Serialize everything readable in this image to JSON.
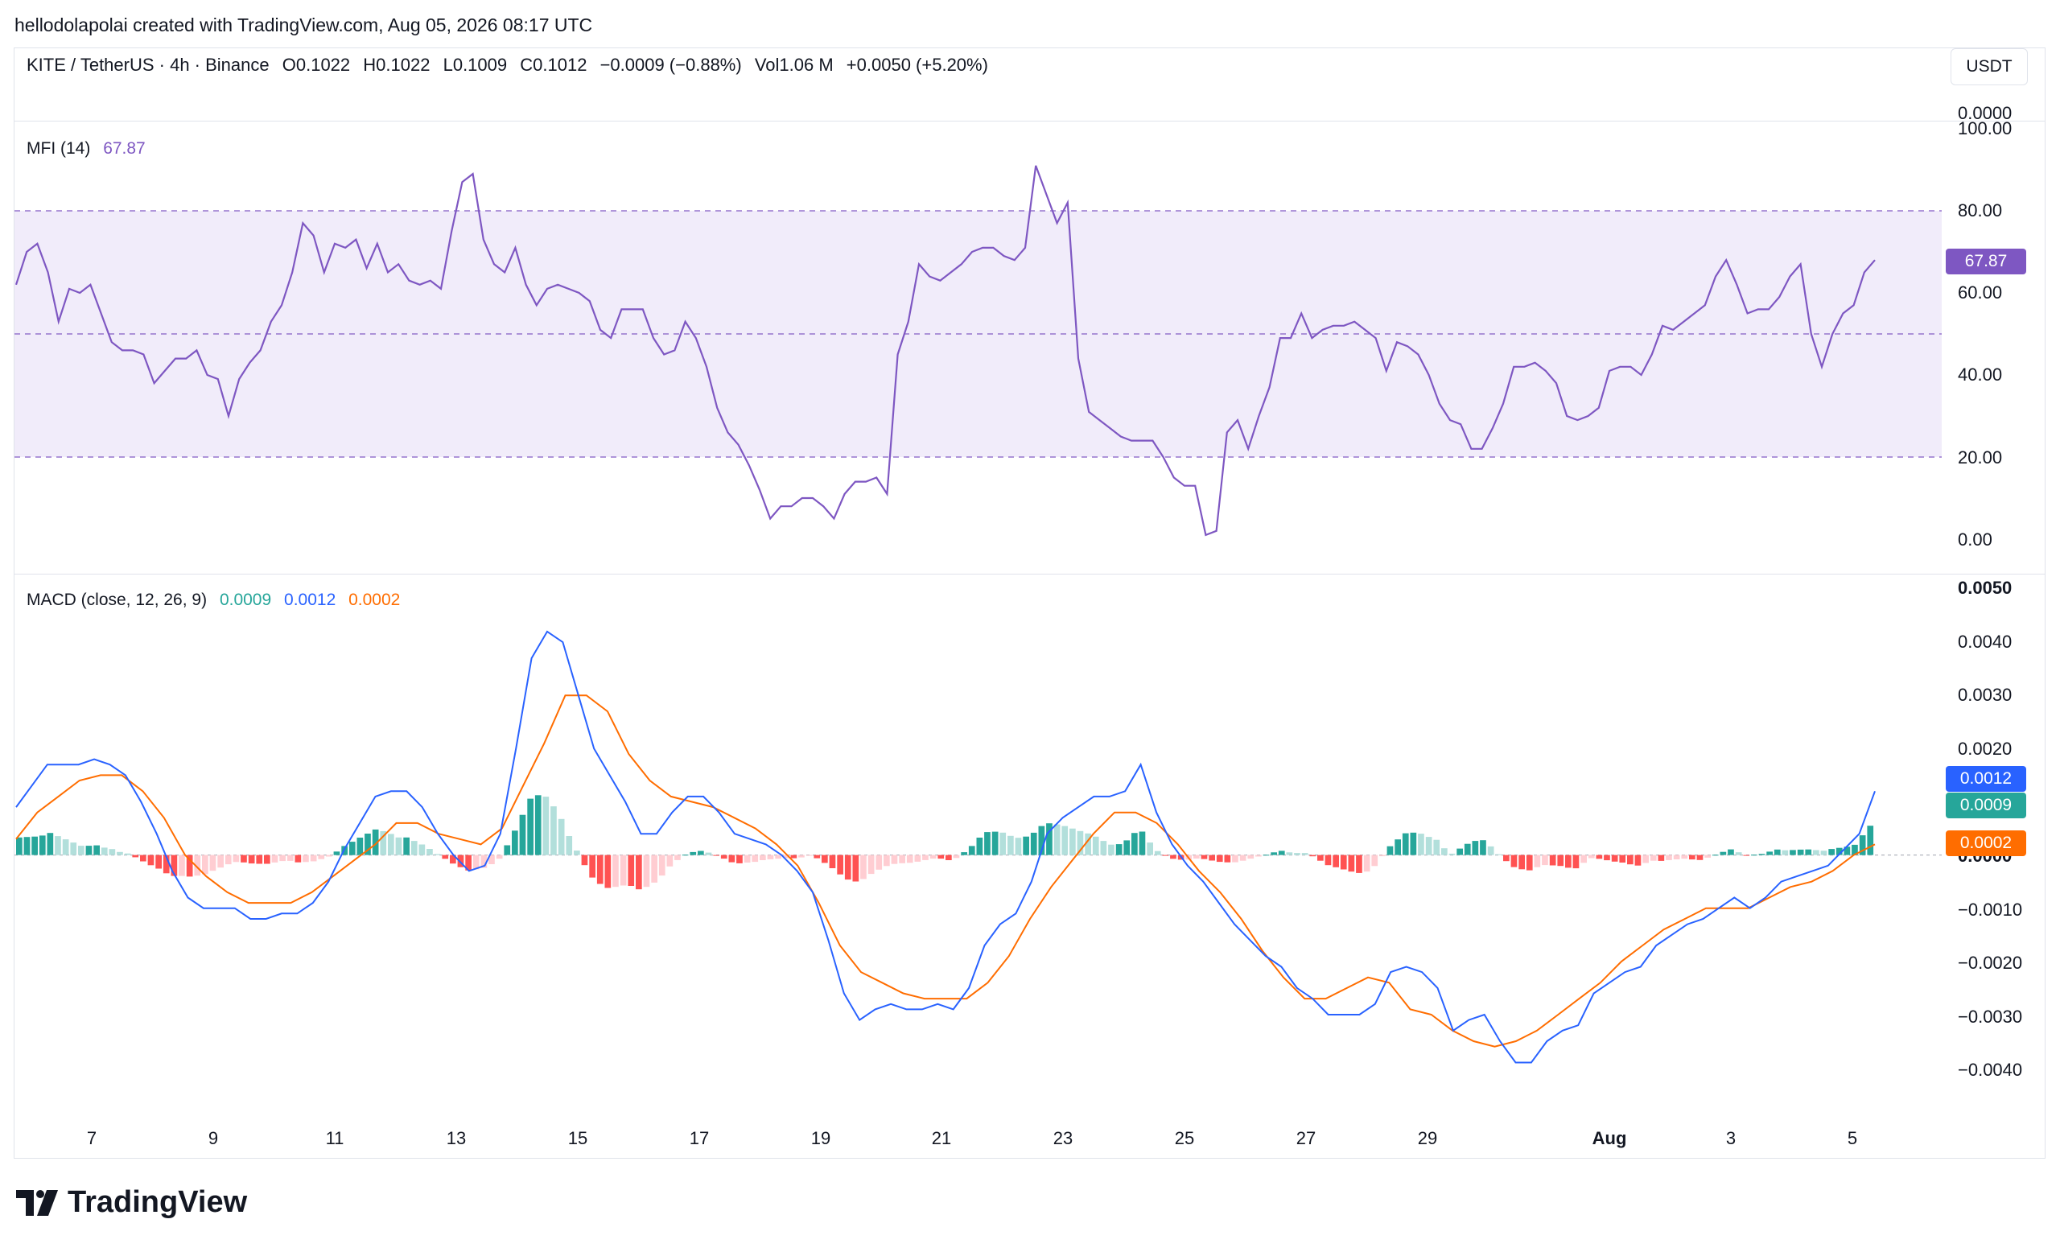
{
  "header": {
    "creator_line": "hellodolapolai created with TradingView.com, Aug 05, 2026 08:17 UTC"
  },
  "symbol": {
    "title": "KITE / TetherUS · 4h · Binance",
    "open": "O0.1022",
    "high": "H0.1022",
    "low": "L0.1009",
    "close": "C0.1012",
    "change": "−0.0009 (−0.88%)",
    "volume": "Vol1.06 M",
    "volume_change": "+0.0050 (+5.20%)"
  },
  "currency_button": "USDT",
  "price_axis_top": "0.0000",
  "mfi": {
    "label": "MFI (14)",
    "value": "67.87",
    "axis": [
      "100.00",
      "80.00",
      "60.00",
      "40.00",
      "20.00",
      "0.00"
    ],
    "color": "#7e57c2",
    "band_color": "#f1ecfa"
  },
  "macd": {
    "label": "MACD (close, 12, 26, 9)",
    "hist_value": "0.0009",
    "macd_value": "0.0012",
    "signal_value": "0.0002",
    "axis": [
      "0.0050",
      "0.0040",
      "0.0030",
      "0.0020",
      "0.0000",
      "−0.0010",
      "−0.0020",
      "−0.0030",
      "−0.0040"
    ],
    "tag_macd": "0.0012",
    "tag_hist": "0.0009",
    "tag_signal": "0.0002",
    "colors": {
      "macd": "#2962ff",
      "signal": "#ff6d00",
      "hist": "#26a69a",
      "hist_light": "#b2dfdb",
      "neg": "#ff5252",
      "neg_light": "#ffcdd2"
    }
  },
  "x_axis": [
    "7",
    "9",
    "11",
    "13",
    "15",
    "17",
    "19",
    "21",
    "23",
    "25",
    "27",
    "29",
    "Aug",
    "3",
    "5"
  ],
  "brand": "TradingView",
  "chart_data": [
    {
      "type": "line",
      "title": "MFI (14)",
      "ylim": [
        0,
        100
      ],
      "levels": [
        80,
        50,
        20
      ],
      "series": [
        {
          "name": "MFI (14)",
          "values": [
            62,
            70,
            72,
            65,
            53,
            61,
            60,
            62,
            55,
            48,
            46,
            46,
            45,
            38,
            41,
            44,
            44,
            46,
            40,
            39,
            30,
            39,
            43,
            46,
            53,
            57,
            65,
            77,
            74,
            65,
            72,
            71,
            73,
            66,
            72,
            65,
            67,
            63,
            62,
            63,
            61,
            75,
            87,
            89,
            73,
            67,
            65,
            71,
            62,
            57,
            61,
            62,
            61,
            60,
            58,
            51,
            49,
            56,
            56,
            56,
            49,
            45,
            46,
            53,
            49,
            42,
            32,
            26,
            23,
            18,
            12,
            5,
            8,
            8,
            10,
            10,
            8,
            5,
            11,
            14,
            14,
            15,
            11,
            45,
            53,
            67,
            64,
            63,
            65,
            67,
            70,
            71,
            71,
            69,
            68,
            71,
            91,
            84,
            77,
            82,
            44,
            31,
            29,
            27,
            25,
            24,
            24,
            24,
            20,
            15,
            13,
            13,
            1,
            2,
            26,
            29,
            22,
            30,
            37,
            49,
            49,
            55,
            49,
            51,
            52,
            52,
            53,
            51,
            49,
            41,
            48,
            47,
            45,
            40,
            33,
            29,
            28,
            22,
            22,
            27,
            33,
            42,
            42,
            43,
            41,
            38,
            30,
            29,
            30,
            32,
            41,
            42,
            42,
            40,
            45,
            52,
            51,
            53,
            55,
            57,
            64,
            68,
            62,
            55,
            56,
            56,
            59,
            64,
            67,
            50,
            42,
            50,
            55,
            57,
            65,
            68
          ]
        }
      ]
    },
    {
      "type": "line",
      "title": "MACD (close, 12, 26, 9)",
      "ylim": [
        -0.0048,
        0.005
      ],
      "series": [
        {
          "name": "MACD",
          "values": [
            0.0009,
            0.0013,
            0.0017,
            0.0017,
            0.0017,
            0.0018,
            0.0017,
            0.0015,
            0.001,
            0.0004,
            -0.0003,
            -0.0008,
            -0.001,
            -0.001,
            -0.001,
            -0.0012,
            -0.0012,
            -0.0011,
            -0.0011,
            -0.0009,
            -0.0005,
            0.0001,
            0.0006,
            0.0011,
            0.0012,
            0.0012,
            0.0009,
            0.0004,
            0.0,
            -0.0003,
            -0.0002,
            0.0004,
            0.002,
            0.0037,
            0.0042,
            0.004,
            0.003,
            0.002,
            0.0015,
            0.001,
            0.0004,
            0.0004,
            0.0008,
            0.0011,
            0.0011,
            0.0008,
            0.0004,
            0.0003,
            0.0002,
            0.0,
            -0.0003,
            -0.0007,
            -0.0016,
            -0.0026,
            -0.0031,
            -0.0029,
            -0.0028,
            -0.0029,
            -0.0029,
            -0.0028,
            -0.0029,
            -0.0025,
            -0.0017,
            -0.0013,
            -0.0011,
            -0.0005,
            0.0004,
            0.0007,
            0.0009,
            0.0011,
            0.0011,
            0.0012,
            0.0017,
            0.0008,
            0.0002,
            -0.0002,
            -0.0005,
            -0.0009,
            -0.0013,
            -0.0016,
            -0.0019,
            -0.0021,
            -0.0025,
            -0.0027,
            -0.003,
            -0.003,
            -0.003,
            -0.0028,
            -0.0022,
            -0.0021,
            -0.0022,
            -0.0025,
            -0.0033,
            -0.0031,
            -0.003,
            -0.0035,
            -0.0039,
            -0.0039,
            -0.0035,
            -0.0033,
            -0.0032,
            -0.0026,
            -0.0024,
            -0.0022,
            -0.0021,
            -0.0017,
            -0.0015,
            -0.0013,
            -0.0012,
            -0.001,
            -0.0008,
            -0.001,
            -0.0008,
            -0.0005,
            -0.0004,
            -0.0003,
            -0.0002,
            0.0001,
            0.0004,
            0.0012
          ]
        },
        {
          "name": "Signal",
          "values": [
            0.0003,
            0.0008,
            0.0011,
            0.0014,
            0.0015,
            0.0015,
            0.0012,
            0.0007,
            0.0,
            -0.0004,
            -0.0007,
            -0.0009,
            -0.0009,
            -0.0009,
            -0.0007,
            -0.0004,
            -0.0001,
            0.0002,
            0.0006,
            0.0006,
            0.0004,
            0.0003,
            0.0002,
            0.0005,
            0.0013,
            0.0021,
            0.003,
            0.003,
            0.0027,
            0.0019,
            0.0014,
            0.0011,
            0.001,
            0.0009,
            0.0007,
            0.0005,
            0.0002,
            -0.0002,
            -0.0009,
            -0.0017,
            -0.0022,
            -0.0024,
            -0.0026,
            -0.0027,
            -0.0027,
            -0.0027,
            -0.0024,
            -0.0019,
            -0.0012,
            -0.0006,
            -0.0001,
            0.0004,
            0.0008,
            0.0008,
            0.0006,
            0.0002,
            -0.0003,
            -0.0007,
            -0.0012,
            -0.0018,
            -0.0023,
            -0.0027,
            -0.0027,
            -0.0025,
            -0.0023,
            -0.0024,
            -0.0029,
            -0.003,
            -0.0033,
            -0.0035,
            -0.0036,
            -0.0035,
            -0.0033,
            -0.003,
            -0.0027,
            -0.0024,
            -0.002,
            -0.0017,
            -0.0014,
            -0.0012,
            -0.001,
            -0.001,
            -0.001,
            -0.0008,
            -0.0006,
            -0.0005,
            -0.0003,
            0.0,
            0.0002
          ]
        }
      ]
    }
  ]
}
